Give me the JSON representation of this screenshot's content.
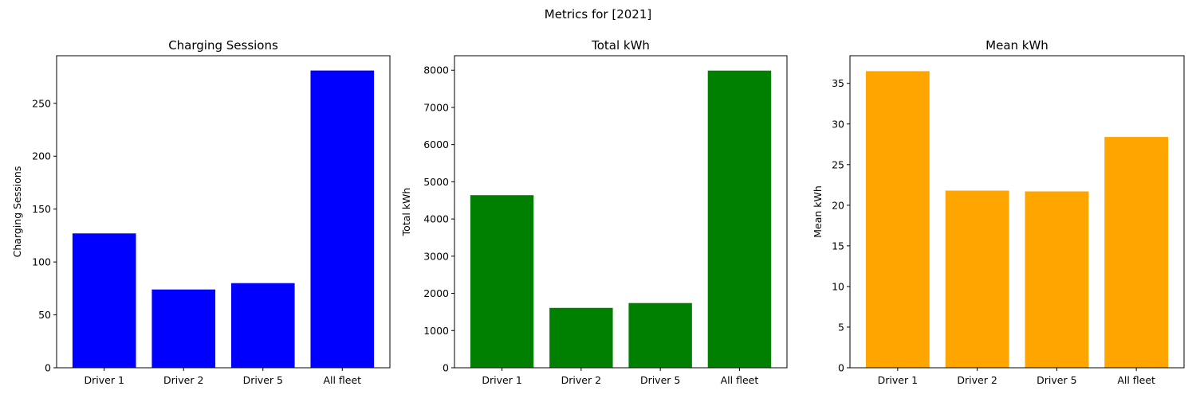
{
  "figure": {
    "suptitle": "Metrics for [2021]"
  },
  "chart_data": [
    {
      "type": "bar",
      "title": "Charging Sessions",
      "xlabel": "",
      "ylabel": "Charging Sessions",
      "categories": [
        "Driver 1",
        "Driver 2",
        "Driver 5",
        "All fleet"
      ],
      "values": [
        127,
        74,
        80,
        281
      ],
      "ylim": [
        0,
        295
      ],
      "yticks": [
        0,
        50,
        100,
        150,
        200,
        250
      ],
      "color": "#0000ff",
      "grid": false
    },
    {
      "type": "bar",
      "title": "Total kWh",
      "xlabel": "",
      "ylabel": "Total kWh",
      "categories": [
        "Driver 1",
        "Driver 2",
        "Driver 5",
        "All fleet"
      ],
      "values": [
        4640,
        1610,
        1740,
        7990
      ],
      "ylim": [
        0,
        8390
      ],
      "yticks": [
        0,
        1000,
        2000,
        3000,
        4000,
        5000,
        6000,
        7000,
        8000
      ],
      "color": "#008000",
      "grid": false
    },
    {
      "type": "bar",
      "title": "Mean kWh",
      "xlabel": "",
      "ylabel": "Mean kWh",
      "categories": [
        "Driver 1",
        "Driver 2",
        "Driver 5",
        "All fleet"
      ],
      "values": [
        36.5,
        21.8,
        21.7,
        28.4
      ],
      "ylim": [
        0,
        38.4
      ],
      "yticks": [
        0,
        5,
        10,
        15,
        20,
        25,
        30,
        35
      ],
      "color": "#ffa500",
      "grid": false
    }
  ]
}
